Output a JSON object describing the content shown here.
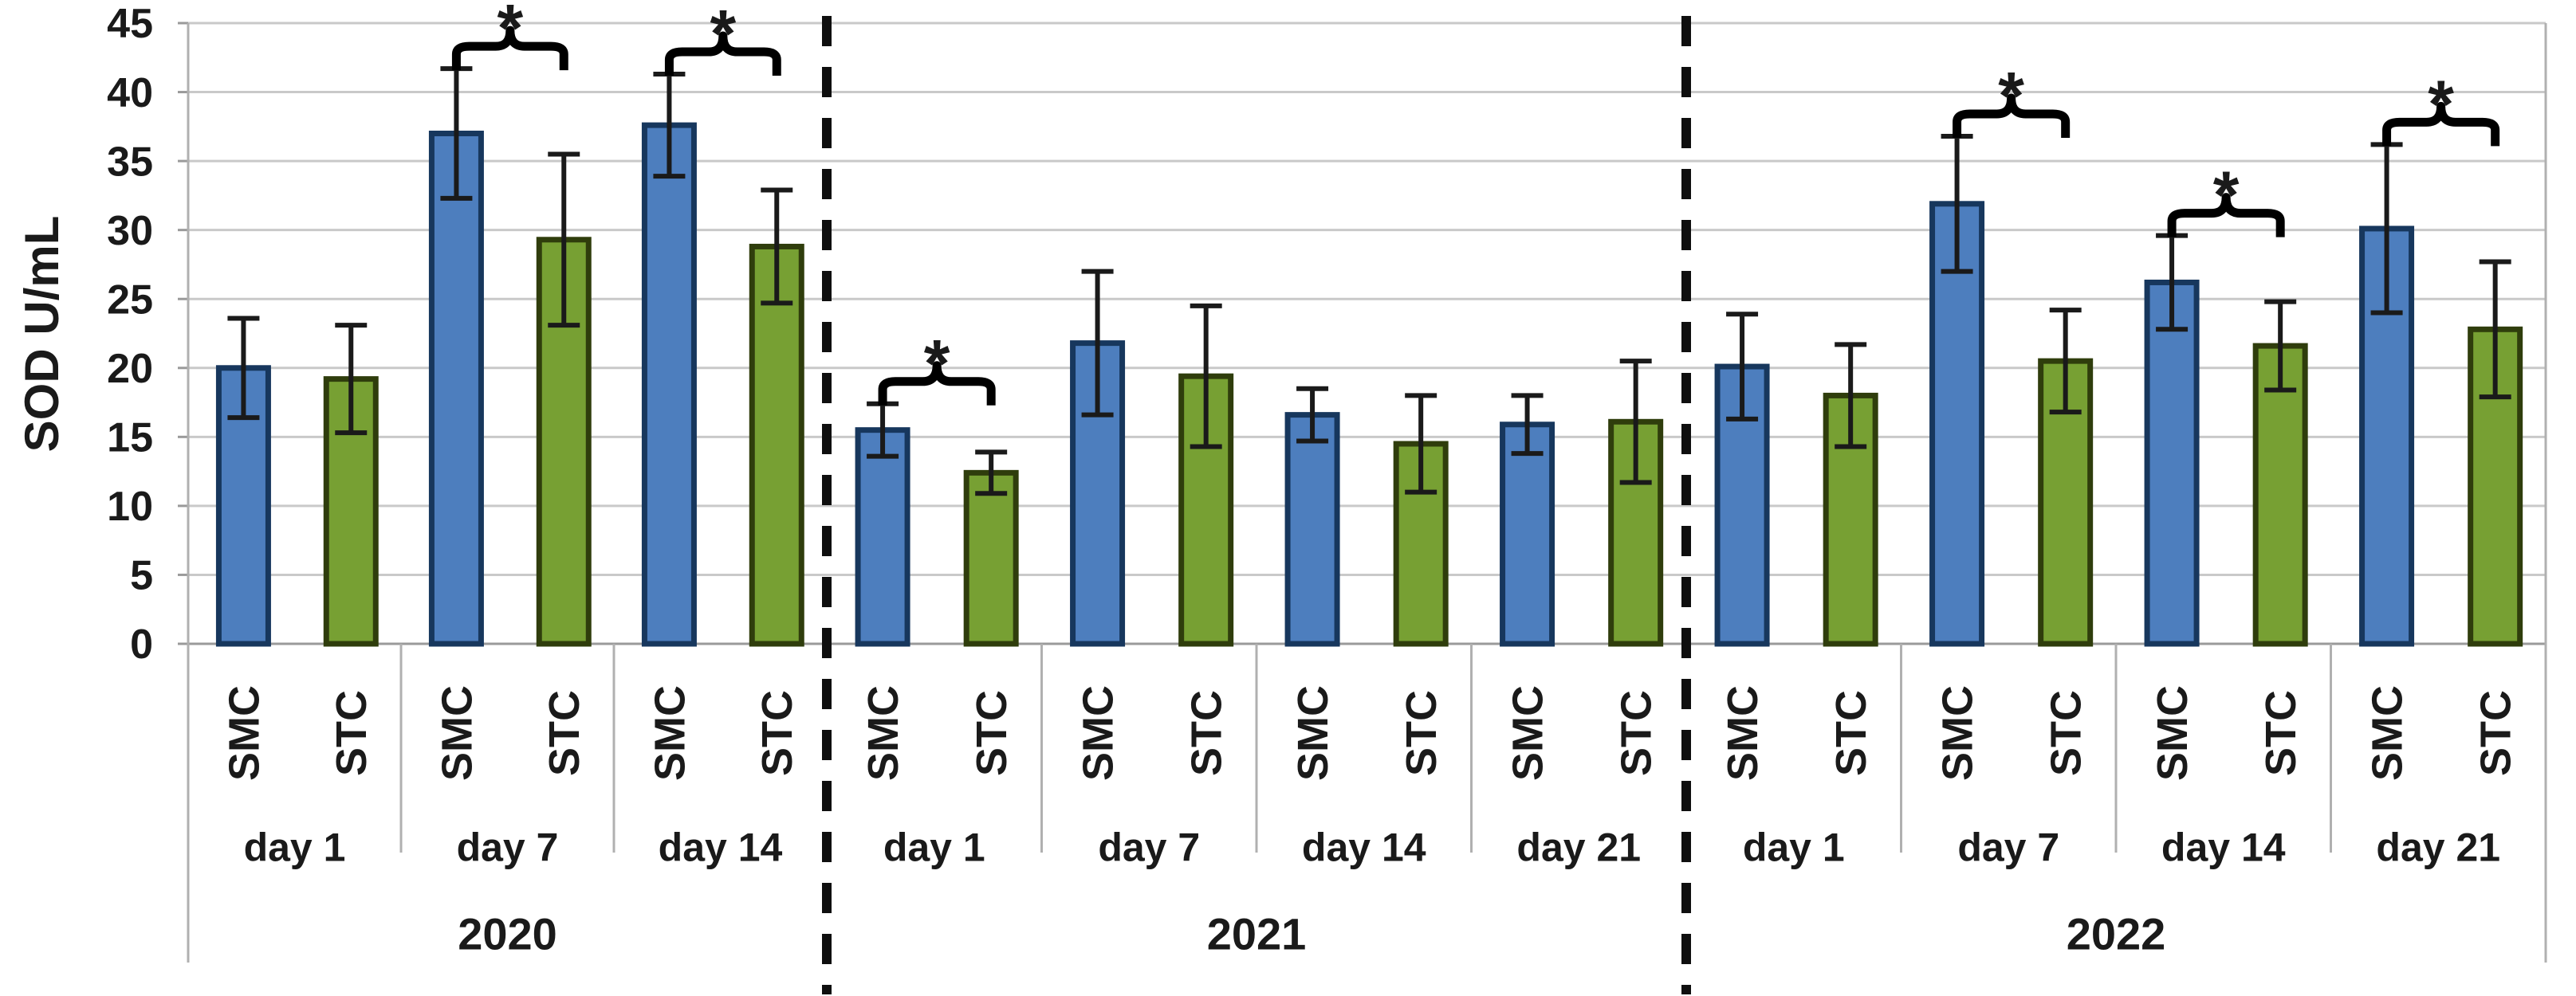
{
  "figure": {
    "y_axis_label": "SOD U/mL",
    "significance_marker": "*"
  },
  "chart_data": {
    "type": "bar",
    "title": "",
    "xlabel": "",
    "ylabel": "SOD U/mL",
    "ylim": [
      0,
      45
    ],
    "ytick_step": 5,
    "yticks": [
      0,
      5,
      10,
      15,
      20,
      25,
      30,
      35,
      40,
      45
    ],
    "grid": true,
    "legend_position": "none",
    "series": [
      {
        "name": "SMC",
        "color": "#4d7ebe"
      },
      {
        "name": "STC",
        "color": "#77a033"
      }
    ],
    "significance_marker": "*",
    "years": [
      {
        "label": "2020",
        "days": [
          {
            "label": "day 1",
            "significant": false,
            "bars": [
              {
                "group": "SMC",
                "value": 20.0,
                "error": 3.6
              },
              {
                "group": "STC",
                "value": 19.2,
                "error": 3.9
              }
            ]
          },
          {
            "label": "day 7",
            "significant": true,
            "bars": [
              {
                "group": "SMC",
                "value": 37.0,
                "error": 4.7
              },
              {
                "group": "STC",
                "value": 29.3,
                "error": 6.2
              }
            ]
          },
          {
            "label": "day 14",
            "significant": true,
            "bars": [
              {
                "group": "SMC",
                "value": 37.6,
                "error": 3.7
              },
              {
                "group": "STC",
                "value": 28.8,
                "error": 4.1
              }
            ]
          }
        ]
      },
      {
        "label": "2021",
        "days": [
          {
            "label": "day 1",
            "significant": true,
            "bars": [
              {
                "group": "SMC",
                "value": 15.5,
                "error": 1.9
              },
              {
                "group": "STC",
                "value": 12.4,
                "error": 1.5
              }
            ]
          },
          {
            "label": "day 7",
            "significant": false,
            "bars": [
              {
                "group": "SMC",
                "value": 21.8,
                "error": 5.2
              },
              {
                "group": "STC",
                "value": 19.4,
                "error": 5.1
              }
            ]
          },
          {
            "label": "day 14",
            "significant": false,
            "bars": [
              {
                "group": "SMC",
                "value": 16.6,
                "error": 1.9
              },
              {
                "group": "STC",
                "value": 14.5,
                "error": 3.5
              }
            ]
          },
          {
            "label": "day 21",
            "significant": false,
            "bars": [
              {
                "group": "SMC",
                "value": 15.9,
                "error": 2.1
              },
              {
                "group": "STC",
                "value": 16.1,
                "error": 4.4
              }
            ]
          }
        ]
      },
      {
        "label": "2022",
        "days": [
          {
            "label": "day 1",
            "significant": false,
            "bars": [
              {
                "group": "SMC",
                "value": 20.1,
                "error": 3.8
              },
              {
                "group": "STC",
                "value": 18.0,
                "error": 3.7
              }
            ]
          },
          {
            "label": "day 7",
            "significant": true,
            "bars": [
              {
                "group": "SMC",
                "value": 31.9,
                "error": 4.9
              },
              {
                "group": "STC",
                "value": 20.5,
                "error": 3.7
              }
            ]
          },
          {
            "label": "day 14",
            "significant": true,
            "bars": [
              {
                "group": "SMC",
                "value": 26.2,
                "error": 3.4
              },
              {
                "group": "STC",
                "value": 21.6,
                "error": 3.2
              }
            ]
          },
          {
            "label": "day 21",
            "significant": true,
            "bars": [
              {
                "group": "SMC",
                "value": 30.1,
                "error": 6.1
              },
              {
                "group": "STC",
                "value": 22.8,
                "error": 4.9
              }
            ]
          }
        ]
      }
    ],
    "colors": {
      "smc_fill": "#4d7ebe",
      "smc_stroke": "#17375d",
      "stc_fill": "#77a033",
      "stc_stroke": "#2f3d0c",
      "gridline": "#c9c9c9",
      "baseline": "#9a9a9a",
      "border": "#b0b0b0",
      "divider_dash": "#0f0f0f",
      "error_bar": "#1a1a1a",
      "text": "#1a1a1a"
    }
  }
}
